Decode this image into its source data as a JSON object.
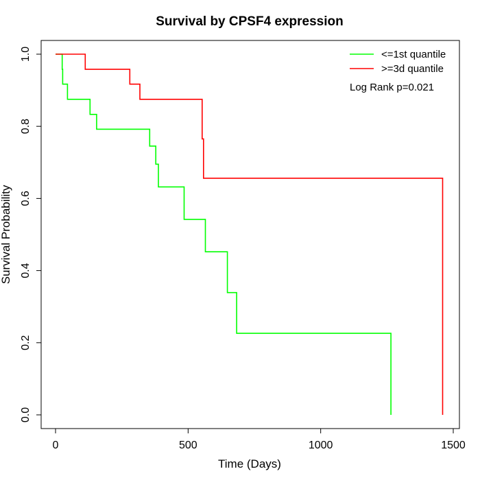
{
  "chart_data": {
    "type": "line",
    "title": "Survival by CPSF4 expression",
    "xlabel": "Time (Days)",
    "ylabel": "Survival Probability",
    "xlim": [
      0,
      1500
    ],
    "ylim": [
      0,
      1
    ],
    "x_ticks": [
      0,
      500,
      1000,
      1500
    ],
    "y_ticks": [
      0.0,
      0.2,
      0.4,
      0.6,
      0.8,
      1.0
    ],
    "x_tick_labels": [
      "0",
      "500",
      "1000",
      "1500"
    ],
    "y_tick_labels": [
      "0.0",
      "0.2",
      "0.4",
      "0.6",
      "0.8",
      "1.0"
    ],
    "grid": false,
    "legend_position": "top-right",
    "annotation": "Log Rank p=0.021",
    "series": [
      {
        "name": "<=1st quantile",
        "color": "#00ff00",
        "step_points": [
          [
            0,
            1.0
          ],
          [
            25,
            1.0
          ],
          [
            25,
            0.958
          ],
          [
            27,
            0.958
          ],
          [
            27,
            0.917
          ],
          [
            45,
            0.917
          ],
          [
            45,
            0.875
          ],
          [
            130,
            0.875
          ],
          [
            130,
            0.833
          ],
          [
            155,
            0.833
          ],
          [
            155,
            0.792
          ],
          [
            355,
            0.792
          ],
          [
            355,
            0.745
          ],
          [
            378,
            0.745
          ],
          [
            378,
            0.695
          ],
          [
            388,
            0.695
          ],
          [
            388,
            0.632
          ],
          [
            485,
            0.632
          ],
          [
            485,
            0.542
          ],
          [
            565,
            0.542
          ],
          [
            565,
            0.452
          ],
          [
            648,
            0.452
          ],
          [
            648,
            0.339
          ],
          [
            683,
            0.339
          ],
          [
            683,
            0.226
          ],
          [
            1265,
            0.226
          ],
          [
            1265,
            0.0
          ]
        ]
      },
      {
        "name": ">=3d quantile",
        "color": "#ff0000",
        "step_points": [
          [
            0,
            1.0
          ],
          [
            112,
            1.0
          ],
          [
            112,
            0.958
          ],
          [
            280,
            0.958
          ],
          [
            280,
            0.917
          ],
          [
            318,
            0.917
          ],
          [
            318,
            0.875
          ],
          [
            553,
            0.875
          ],
          [
            553,
            0.765
          ],
          [
            558,
            0.765
          ],
          [
            558,
            0.656
          ],
          [
            1460,
            0.656
          ],
          [
            1460,
            0.0
          ]
        ]
      }
    ]
  }
}
